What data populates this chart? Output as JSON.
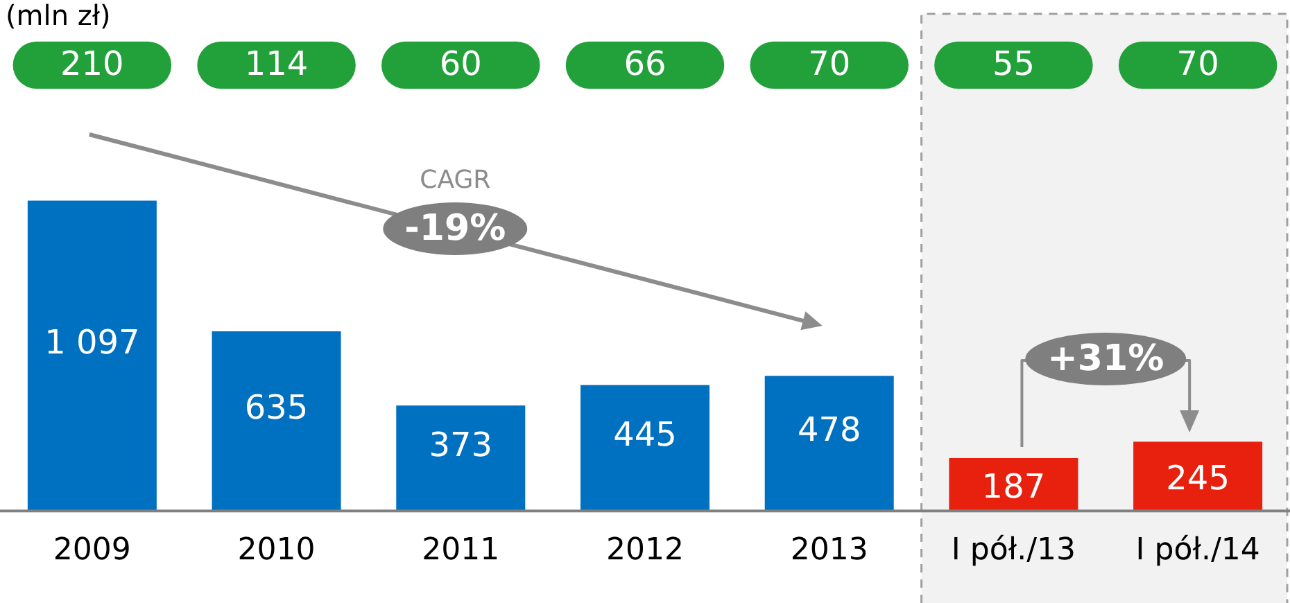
{
  "chart_data": {
    "type": "bar",
    "categories": [
      "2009",
      "2010",
      "2011",
      "2012",
      "2013",
      "I pół./13",
      "I pół./14"
    ],
    "values": [
      1097,
      635,
      373,
      445,
      478,
      187,
      245
    ],
    "colors": [
      "#0070c0",
      "#0070c0",
      "#0070c0",
      "#0070c0",
      "#0070c0",
      "#e8200e",
      "#e8200e"
    ],
    "value_labels": [
      "1 097",
      "635",
      "373",
      "445",
      "478",
      "187",
      "245"
    ],
    "annotations": [
      "210",
      "114",
      "60",
      "66",
      "70",
      "55",
      "70",
      "CAGR",
      "-19%",
      "+31%",
      "(mln zł)"
    ],
    "bands": [
      {
        "axis": "x",
        "from": "I pół./13",
        "to": "I pół./14",
        "color": "#f2f2f2"
      }
    ],
    "grid": false,
    "legend": false
  }
}
